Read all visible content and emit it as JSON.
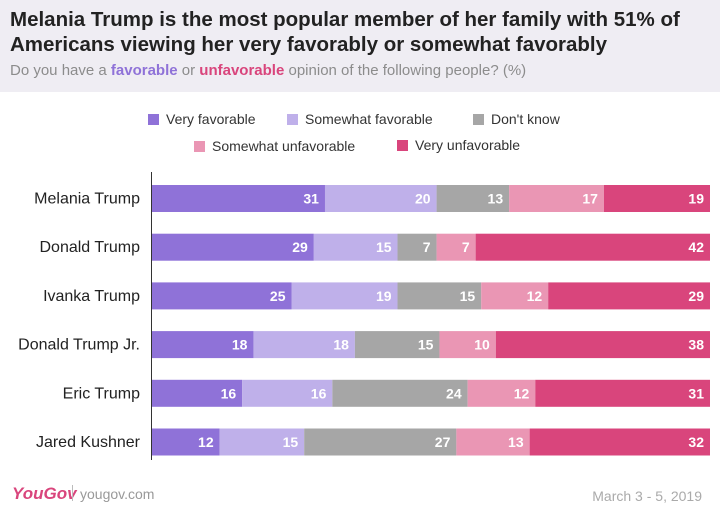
{
  "header": {
    "title": "Melania Trump is the most popular member of her family with 51% of Americans viewing her very favorably or somewhat favorably",
    "subtitle_prefix": "Do you have a ",
    "subtitle_favorable": "favorable",
    "subtitle_or": " or ",
    "subtitle_unfavorable": "unfavorable",
    "subtitle_suffix": " opinion of the following people? (%)"
  },
  "colors": {
    "very_favorable": "#8f72d8",
    "somewhat_favorable": "#bfb0ea",
    "dont_know": "#a6a6a6",
    "somewhat_unfavorable": "#ea96b4",
    "very_unfavorable": "#d9457c",
    "header_bg": "#efedf3"
  },
  "legend": {
    "very_favorable": "Very favorable",
    "somewhat_favorable": "Somewhat favorable",
    "dont_know": "Don't know",
    "somewhat_unfavorable": "Somewhat unfavorable",
    "very_unfavorable": "Very unfavorable"
  },
  "chart_data": {
    "type": "bar",
    "orientation": "horizontal",
    "stacked": true,
    "title": "Melania Trump is the most popular member of her family with 51% of Americans viewing her very favorably or somewhat favorably",
    "subtitle": "Do you have a favorable or unfavorable opinion of the following people? (%)",
    "categories": [
      "Melania Trump",
      "Donald Trump",
      "Ivanka Trump",
      "Donald Trump Jr.",
      "Eric Trump",
      "Jared Kushner"
    ],
    "series": [
      {
        "name": "Very favorable",
        "color": "#8f72d8",
        "values": [
          31,
          29,
          25,
          18,
          16,
          12
        ]
      },
      {
        "name": "Somewhat favorable",
        "color": "#bfb0ea",
        "values": [
          20,
          15,
          19,
          18,
          16,
          15
        ]
      },
      {
        "name": "Don't know",
        "color": "#a6a6a6",
        "values": [
          13,
          7,
          15,
          15,
          24,
          27
        ]
      },
      {
        "name": "Somewhat unfavorable",
        "color": "#ea96b4",
        "values": [
          17,
          7,
          12,
          10,
          12,
          13
        ]
      },
      {
        "name": "Very unfavorable",
        "color": "#d9457c",
        "values": [
          19,
          42,
          29,
          38,
          31,
          32
        ]
      }
    ],
    "legend_position": "top",
    "grid": false
  },
  "footer": {
    "brand": "YouGov",
    "site": "yougov.com",
    "date": "March 3 - 5, 2019"
  }
}
